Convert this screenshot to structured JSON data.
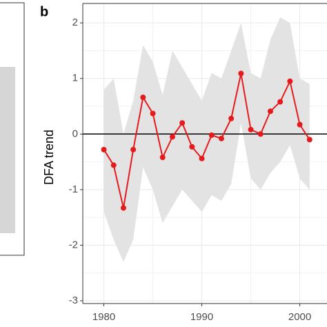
{
  "chart_data": {
    "type": "line",
    "panel_label": "b",
    "ylabel": "DFA trend",
    "x": [
      1980,
      1981,
      1982,
      1983,
      1984,
      1985,
      1986,
      1987,
      1988,
      1989,
      1990,
      1991,
      1992,
      1993,
      1994,
      1995,
      1996,
      1997,
      1998,
      1999,
      2000,
      2001
    ],
    "series": [
      {
        "name": "DFA trend",
        "color": "#e41a1c",
        "values": [
          -0.28,
          -0.56,
          -1.33,
          -0.28,
          0.66,
          0.37,
          -0.42,
          -0.05,
          0.2,
          -0.23,
          -0.44,
          -0.02,
          -0.08,
          0.28,
          1.09,
          0.08,
          0.0,
          0.41,
          0.58,
          0.95,
          0.17,
          -0.1
        ]
      }
    ],
    "ribbon_upper": [
      0.8,
      1.0,
      0.0,
      0.6,
      1.6,
      1.3,
      0.7,
      1.5,
      1.2,
      0.9,
      0.6,
      1.1,
      1.0,
      1.5,
      2.0,
      1.1,
      1.0,
      1.7,
      2.1,
      2.0,
      1.0,
      0.9
    ],
    "ribbon_lower": [
      -1.4,
      -1.9,
      -2.3,
      -1.9,
      -0.6,
      -1.0,
      -1.6,
      -1.3,
      -1.0,
      -1.2,
      -1.4,
      -1.1,
      -1.2,
      -0.9,
      0.2,
      -0.8,
      -1.0,
      -0.7,
      -0.5,
      -0.2,
      -0.8,
      -1.0
    ],
    "ribbon_color": "#e3e3e3",
    "xlim": [
      1977.85,
      2003.2
    ],
    "xticks": [
      1980,
      1990,
      2000
    ],
    "ylim": [
      -3.05,
      2.35
    ],
    "yticks": [
      -3,
      -2,
      -1,
      0,
      1,
      2
    ],
    "grid": true
  }
}
